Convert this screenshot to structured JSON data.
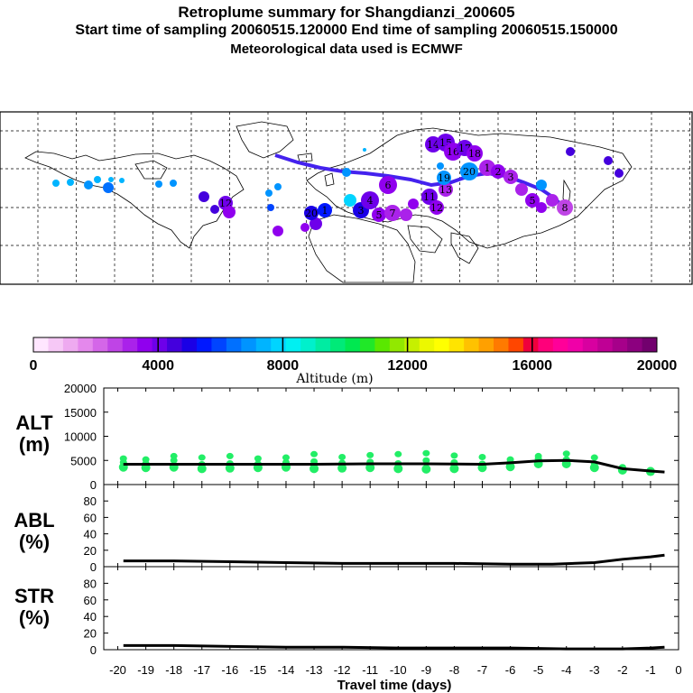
{
  "header": {
    "title": "Retroplume summary for Shangdianzi_200605",
    "sampling": "Start time of sampling 20060515.120000     End time of sampling 20060515.150000",
    "met": "Meteorological data used is ECMWF"
  },
  "colorbar": {
    "colors": [
      "#ffe6ff",
      "#f6c8f6",
      "#eeaaf0",
      "#e488ec",
      "#d466e8",
      "#bf44e6",
      "#aa22ea",
      "#9000ee",
      "#6e00ea",
      "#4400dd",
      "#1a00e6",
      "#0018ff",
      "#0044ff",
      "#0070ff",
      "#0094ff",
      "#00b4ff",
      "#00d4ff",
      "#00f0f2",
      "#00f0cc",
      "#00eca2",
      "#00ea78",
      "#00e850",
      "#20e828",
      "#5ae800",
      "#92e800",
      "#c6f000",
      "#ecf800",
      "#ffff00",
      "#ffe400",
      "#ffc200",
      "#ffa000",
      "#ff7a00",
      "#ff4600",
      "#f0003c",
      "#ff007a",
      "#ff0099",
      "#f000a8",
      "#d800a0",
      "#bf0095",
      "#a6008a",
      "#8c007f",
      "#72006e"
    ],
    "tick_labels": [
      "0",
      "4000",
      "8000",
      "12000",
      "16000",
      "20000"
    ],
    "axis_label": "Altitude (m)"
  },
  "panels": {
    "alt": {
      "label_line1": "ALT",
      "label_line2": "(m)"
    },
    "abl": {
      "label_line1": "ABL",
      "label_line2": "(%)"
    },
    "str": {
      "label_line1": "STR",
      "label_line2": "(%)"
    }
  },
  "chart_data": [
    {
      "type": "line",
      "name": "ALT",
      "ylabel": "ALT (m)",
      "ylim": [
        0,
        20000
      ],
      "yticks": [
        "0",
        "5000",
        "10000",
        "15000",
        "20000"
      ],
      "x": [
        -19.8,
        -19,
        -18,
        -17,
        -16,
        -15,
        -14,
        -13,
        -12,
        -11,
        -10,
        -9,
        -8,
        -7,
        -6,
        -5,
        -4,
        -3,
        -2,
        -1,
        -0.5
      ],
      "values": [
        4200,
        4200,
        4200,
        4200,
        4200,
        4200,
        4200,
        4200,
        4250,
        4300,
        4300,
        4300,
        4250,
        4200,
        4500,
        4900,
        5000,
        4700,
        3300,
        2800,
        2600
      ],
      "scatter": [
        {
          "x": -19.8,
          "y": [
            3600,
            4600,
            5400
          ]
        },
        {
          "x": -19,
          "y": [
            3500,
            4400,
            5200
          ]
        },
        {
          "x": -18,
          "y": [
            3600,
            5000,
            5900
          ]
        },
        {
          "x": -17,
          "y": [
            3300,
            4200,
            5600
          ]
        },
        {
          "x": -16,
          "y": [
            3400,
            4400,
            5900
          ]
        },
        {
          "x": -15,
          "y": [
            3500,
            4300,
            5400
          ]
        },
        {
          "x": -14,
          "y": [
            3600,
            4600,
            5600
          ]
        },
        {
          "x": -13,
          "y": [
            3300,
            4800,
            6300
          ]
        },
        {
          "x": -12,
          "y": [
            3400,
            4500,
            5700
          ]
        },
        {
          "x": -11,
          "y": [
            3500,
            4700,
            6100
          ]
        },
        {
          "x": -10,
          "y": [
            3300,
            4400,
            6300
          ]
        },
        {
          "x": -9,
          "y": [
            3200,
            5000,
            6500
          ]
        },
        {
          "x": -8,
          "y": [
            3300,
            4600,
            6000
          ]
        },
        {
          "x": -7,
          "y": [
            3500,
            4300,
            5700
          ]
        },
        {
          "x": -6,
          "y": [
            3700,
            4700,
            5200
          ]
        },
        {
          "x": -5,
          "y": [
            4300,
            5300,
            5900
          ]
        },
        {
          "x": -4,
          "y": [
            4300,
            5200,
            6400
          ]
        },
        {
          "x": -3,
          "y": [
            3500,
            4400,
            5600
          ]
        },
        {
          "x": -2,
          "y": [
            3000,
            3600
          ]
        },
        {
          "x": -1,
          "y": [
            2700,
            3000
          ]
        }
      ]
    },
    {
      "type": "line",
      "name": "ABL",
      "ylabel": "ABL (%)",
      "ylim": [
        0,
        100
      ],
      "yticks": [
        "0",
        "20",
        "40",
        "60",
        "80"
      ],
      "x": [
        -19.8,
        -18,
        -16,
        -14,
        -12,
        -10,
        -8,
        -6,
        -4.5,
        -3,
        -2,
        -1,
        -0.5
      ],
      "values": [
        7,
        7,
        6,
        5,
        4,
        4,
        4,
        3,
        3,
        5,
        9,
        12,
        14
      ]
    },
    {
      "type": "line",
      "name": "STR",
      "ylabel": "STR (%)",
      "ylim": [
        0,
        100
      ],
      "yticks": [
        "0",
        "20",
        "40",
        "60",
        "80"
      ],
      "x": [
        -19.8,
        -18,
        -16,
        -14,
        -12,
        -10,
        -8,
        -6,
        -4,
        -2,
        -1,
        -0.5
      ],
      "values": [
        5,
        5,
        4,
        3,
        3,
        2,
        2,
        2,
        1,
        1,
        2,
        3
      ],
      "xlabel": "Travel time (days)",
      "xticks": [
        "-20",
        "-19",
        "-18",
        "-17",
        "-16",
        "-15",
        "-14",
        "-13",
        "-12",
        "-11",
        "-10",
        "-9",
        "-8",
        "-7",
        "-6",
        "-5",
        "-4",
        "-3",
        "-2",
        "-1",
        "0"
      ]
    }
  ],
  "map": {
    "plume_labels": [
      "1",
      "2",
      "3",
      "4",
      "5",
      "6",
      "7",
      "8",
      "9",
      "10",
      "11",
      "12",
      "13",
      "14",
      "15",
      "16",
      "17",
      "18",
      "19",
      "20"
    ]
  }
}
